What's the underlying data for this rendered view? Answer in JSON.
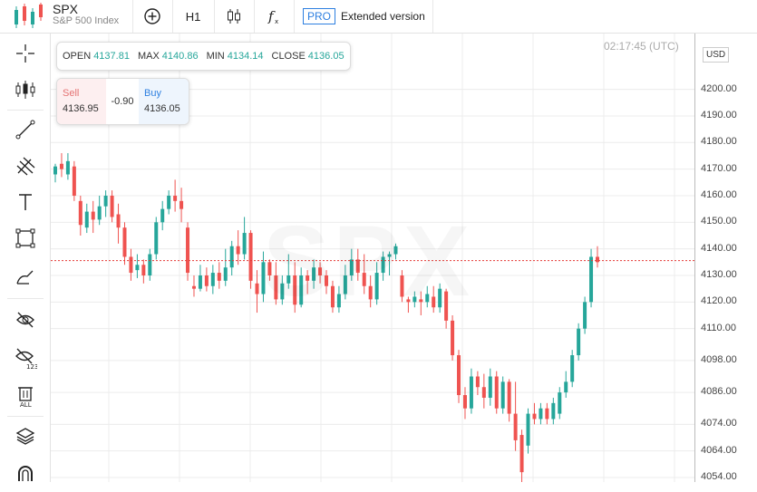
{
  "symbol": {
    "name": "SPX",
    "description": "S&P 500 Index"
  },
  "toolbar": {
    "timeframe": "H1",
    "pro_badge": "PRO",
    "extended_label": "Extended version"
  },
  "sidebar_tools": [
    "crosshair-icon",
    "candles-icon",
    "trendline-icon",
    "fib-icon",
    "text-icon",
    "rectangle-icon",
    "brush-icon",
    "hide-drawings-icon",
    "hide-indicators-icon",
    "delete-all-icon",
    "layers-icon",
    "magnet-icon"
  ],
  "ohlc": {
    "open_label": "OPEN",
    "open": "4137.81",
    "max_label": "MAX",
    "max": "4140.86",
    "min_label": "MIN",
    "min": "4134.14",
    "close_label": "CLOSE",
    "close": "4136.05"
  },
  "trade": {
    "sell_label": "Sell",
    "sell_price": "4136.95",
    "spread": "-0.90",
    "buy_label": "Buy",
    "buy_price": "4136.05"
  },
  "time_label": "02:17:45 (UTC)",
  "currency": "USD",
  "watermark": "SPX",
  "colors": {
    "up": "#26a69a",
    "down": "#ef5350",
    "accent": "#2d7fe0",
    "current_line": "#e53935"
  },
  "chart_data": {
    "type": "candlestick",
    "ylim": [
      4054,
      4206
    ],
    "y_ticks": [
      "4200.00",
      "4190.00",
      "4180.00",
      "4170.00",
      "4160.00",
      "4150.00",
      "4140.00",
      "4130.00",
      "4120.00",
      "4110.00",
      "4098.00",
      "4086.00",
      "4074.00",
      "4064.00",
      "4054.00"
    ],
    "current_price": 4135.6,
    "candles": [
      [
        4168,
        4171,
        4165,
        4172
      ],
      [
        4172,
        4170,
        4167,
        4176
      ],
      [
        4168,
        4173,
        4166,
        4176
      ],
      [
        4171,
        4160,
        4158,
        4173
      ],
      [
        4158,
        4149,
        4145,
        4160
      ],
      [
        4148,
        4154,
        4146,
        4157
      ],
      [
        4154,
        4151,
        4146,
        4158
      ],
      [
        4151,
        4156,
        4149,
        4160
      ],
      [
        4156,
        4160,
        4152,
        4162
      ],
      [
        4160,
        4152,
        4150,
        4162
      ],
      [
        4153,
        4148,
        4142,
        4157
      ],
      [
        4148,
        4137,
        4134,
        4150
      ],
      [
        4137,
        4131,
        4128,
        4140
      ],
      [
        4132,
        4134,
        4129,
        4138
      ],
      [
        4134,
        4130,
        4127,
        4136
      ],
      [
        4130,
        4138,
        4128,
        4140
      ],
      [
        4138,
        4150,
        4136,
        4152
      ],
      [
        4150,
        4155,
        4147,
        4158
      ],
      [
        4155,
        4160,
        4153,
        4162
      ],
      [
        4160,
        4158,
        4154,
        4166
      ],
      [
        4158,
        4155,
        4150,
        4163
      ],
      [
        4148,
        4131,
        4128,
        4150
      ],
      [
        4126,
        4125,
        4122,
        4130
      ],
      [
        4125,
        4130,
        4124,
        4134
      ],
      [
        4130,
        4126,
        4124,
        4133
      ],
      [
        4126,
        4131,
        4123,
        4134
      ],
      [
        4131,
        4128,
        4125,
        4135
      ],
      [
        4128,
        4133,
        4126,
        4140
      ],
      [
        4133,
        4141,
        4130,
        4143
      ],
      [
        4141,
        4138,
        4134,
        4147
      ],
      [
        4138,
        4146,
        4136,
        4152
      ],
      [
        4146,
        4128,
        4125,
        4147
      ],
      [
        4127,
        4123,
        4116,
        4132
      ],
      [
        4123,
        4135,
        4120,
        4139
      ],
      [
        4135,
        4130,
        4128,
        4136
      ],
      [
        4130,
        4121,
        4119,
        4135
      ],
      [
        4121,
        4127,
        4119,
        4130
      ],
      [
        4127,
        4130,
        4125,
        4138
      ],
      [
        4130,
        4119,
        4116,
        4135
      ],
      [
        4119,
        4130,
        4118,
        4133
      ],
      [
        4130,
        4128,
        4123,
        4132
      ],
      [
        4128,
        4133,
        4125,
        4136
      ],
      [
        4133,
        4130,
        4127,
        4135
      ],
      [
        4130,
        4126,
        4123,
        4132
      ],
      [
        4126,
        4118,
        4116,
        4128
      ],
      [
        4118,
        4123,
        4116,
        4126
      ],
      [
        4123,
        4130,
        4121,
        4134
      ],
      [
        4130,
        4136,
        4128,
        4140
      ],
      [
        4136,
        4131,
        4128,
        4140
      ],
      [
        4131,
        4126,
        4123,
        4138
      ],
      [
        4126,
        4121,
        4118,
        4130
      ],
      [
        4121,
        4131,
        4119,
        4135
      ],
      [
        4131,
        4137,
        4128,
        4139
      ],
      [
        4137,
        4138,
        4130,
        4139
      ],
      [
        4138,
        4141,
        4136,
        4142
      ],
      [
        4130,
        4122,
        4120,
        4132
      ],
      [
        4121,
        4120,
        4116,
        4122
      ],
      [
        4120,
        4122,
        4118,
        4124
      ],
      [
        4121,
        4120,
        4115,
        4124
      ],
      [
        4120,
        4123,
        4118,
        4126
      ],
      [
        4122,
        4118,
        4116,
        4126
      ],
      [
        4118,
        4125,
        4116,
        4127
      ],
      [
        4124,
        4113,
        4110,
        4125
      ],
      [
        4113,
        4100,
        4098,
        4115
      ],
      [
        4100,
        4085,
        4082,
        4102
      ],
      [
        4085,
        4080,
        4076,
        4088
      ],
      [
        4080,
        4092,
        4078,
        4095
      ],
      [
        4092,
        4088,
        4085,
        4094
      ],
      [
        4088,
        4084,
        4080,
        4093
      ],
      [
        4084,
        4092,
        4081,
        4095
      ],
      [
        4092,
        4080,
        4078,
        4094
      ],
      [
        4080,
        4090,
        4078,
        4092
      ],
      [
        4090,
        4078,
        4075,
        4091
      ],
      [
        4078,
        4068,
        4064,
        4090
      ],
      [
        4070,
        4056,
        4052,
        4072
      ],
      [
        4066,
        4078,
        4063,
        4080
      ],
      [
        4078,
        4076,
        4074,
        4082
      ],
      [
        4076,
        4080,
        4074,
        4082
      ],
      [
        4080,
        4076,
        4074,
        4082
      ],
      [
        4076,
        4082,
        4074,
        4084
      ],
      [
        4078,
        4086,
        4076,
        4088
      ],
      [
        4086,
        4090,
        4084,
        4094
      ],
      [
        4090,
        4100,
        4088,
        4102
      ],
      [
        4100,
        4110,
        4098,
        4112
      ],
      [
        4110,
        4120,
        4108,
        4122
      ],
      [
        4120,
        4137,
        4118,
        4140
      ],
      [
        4137,
        4135,
        4133,
        4141
      ]
    ]
  }
}
